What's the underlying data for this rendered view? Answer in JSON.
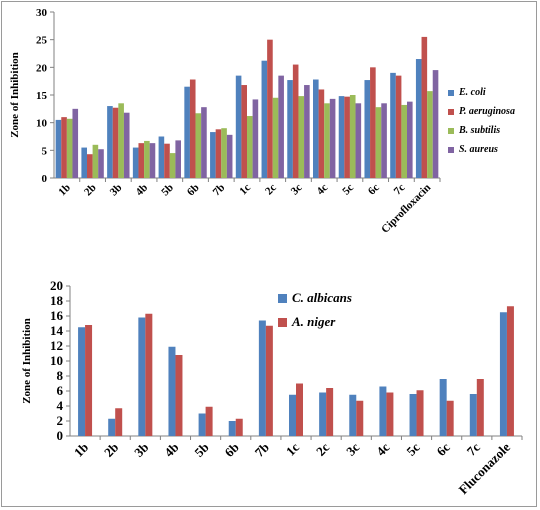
{
  "chart_data": [
    {
      "type": "bar",
      "ylabel": "Zone of Inhibition",
      "ylim": [
        0,
        30
      ],
      "yticks": [
        0,
        5,
        10,
        15,
        20,
        25,
        30
      ],
      "categories": [
        "1b",
        "2b",
        "3b",
        "4b",
        "5b",
        "6b",
        "7b",
        "1c",
        "2c",
        "3c",
        "4c",
        "5c",
        "6c",
        "7c",
        "Ciprofloxacin"
      ],
      "series": [
        {
          "name": "E. coli",
          "color": "#4F81BD",
          "values": [
            10.5,
            5.5,
            13,
            5.5,
            7.5,
            16.5,
            8.3,
            18.5,
            21.2,
            17.7,
            17.8,
            14.8,
            17.7,
            19,
            21.5
          ]
        },
        {
          "name": "P. aeruginosa",
          "color": "#C0504D",
          "values": [
            11,
            4.3,
            12.7,
            6.3,
            6.2,
            17.8,
            8.8,
            16.8,
            25,
            20.5,
            16,
            14.7,
            20,
            18.5,
            25.5
          ]
        },
        {
          "name": "B. subtilis",
          "color": "#9BBB59",
          "values": [
            10.7,
            6,
            13.5,
            6.7,
            4.5,
            11.7,
            9,
            11.2,
            14.5,
            14.8,
            13.5,
            15,
            12.8,
            13.2,
            15.7
          ]
        },
        {
          "name": "S. aureus",
          "color": "#8064A2",
          "values": [
            12.5,
            5.2,
            11.8,
            6.3,
            6.8,
            12.8,
            7.8,
            14.2,
            18.5,
            16.8,
            14.3,
            13.5,
            13.5,
            13.8,
            19.5
          ]
        }
      ],
      "legend_position": "right"
    },
    {
      "type": "bar",
      "ylabel": "Zone of Inhibition",
      "ylim": [
        0,
        20
      ],
      "yticks": [
        0,
        2,
        4,
        6,
        8,
        10,
        12,
        14,
        16,
        18,
        20
      ],
      "categories": [
        "1b",
        "2b",
        "3b",
        "4b",
        "5b",
        "6b",
        "7b",
        "1c",
        "2c",
        "3c",
        "4c",
        "5c",
        "6c",
        "7c",
        "Fluconazole"
      ],
      "series": [
        {
          "name": "C. albicans",
          "color": "#4F81BD",
          "values": [
            14.5,
            2.3,
            15.8,
            11.9,
            3,
            2,
            15.4,
            5.5,
            5.8,
            5.5,
            6.6,
            5.6,
            7.6,
            5.6,
            16.5
          ]
        },
        {
          "name": "A. niger",
          "color": "#C0504D",
          "values": [
            14.8,
            3.7,
            16.3,
            10.8,
            3.9,
            2.3,
            14.7,
            7,
            6.4,
            4.7,
            5.8,
            6.1,
            4.7,
            7.6,
            17.3
          ]
        }
      ],
      "legend_position": "top-center"
    }
  ]
}
